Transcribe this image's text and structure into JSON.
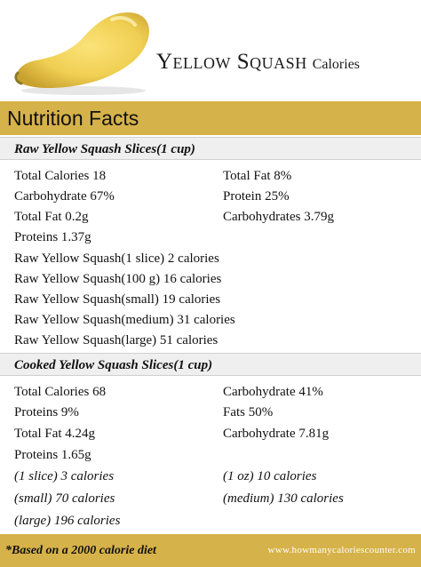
{
  "header": {
    "title_main": "Yellow Squash",
    "title_sub": "Calories"
  },
  "facts_title": "Nutrition Facts",
  "raw": {
    "heading": "Raw Yellow Squash Slices(1 cup)",
    "left": [
      "Total Calories 18",
      "Carbohydrate 67%",
      "Total Fat 0.2g",
      "Proteins 1.37g"
    ],
    "right": [
      "Total Fat 8%",
      "Protein 25%",
      "Carbohydrates 3.79g"
    ],
    "servings": [
      "Raw Yellow Squash(1 slice) 2 calories",
      "Raw Yellow Squash(100 g) 16 calories",
      "Raw Yellow Squash(small) 19 calories",
      "Raw Yellow Squash(medium) 31 calories",
      "Raw Yellow Squash(large) 51 calories"
    ]
  },
  "cooked": {
    "heading": "Cooked Yellow Squash Slices(1 cup)",
    "left": [
      "Total Calories 68",
      "Proteins 9%",
      "Total Fat 4.24g",
      "Proteins 1.65g"
    ],
    "right": [
      "Carbohydrate 41%",
      "Fats 50%",
      "Carbohydrate 7.81g"
    ],
    "servings_left": [
      "(1 slice) 3 calories",
      "(small) 70 calories",
      "(large) 196 calories"
    ],
    "servings_right": [
      "(1 oz) 10 calories",
      "(medium) 130 calories"
    ]
  },
  "footer": {
    "note": "*Based on a 2000 calorie diet",
    "site": "www.howmanycaloriescounter.com"
  },
  "colors": {
    "accent": "#d6b24a",
    "squash": "#f0cf52"
  },
  "icons": {
    "squash_image": "yellow-squash-illustration"
  }
}
